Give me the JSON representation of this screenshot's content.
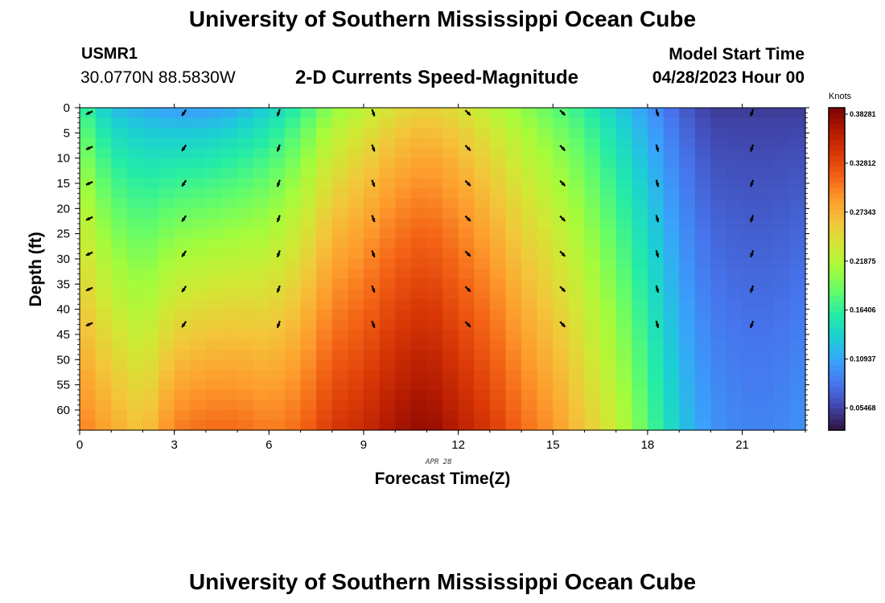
{
  "header": {
    "title": "University of Southern Mississippi Ocean Cube",
    "station_id": "USMR1",
    "coords": "30.0770N  88.5830W",
    "plot_title": "2-D Currents Speed-Magnitude",
    "model_start_label": "Model Start Time",
    "model_start_value": "04/28/2023 Hour 00"
  },
  "footer": {
    "title": "University of Southern Mississippi Ocean Cube"
  },
  "chart_data": {
    "type": "heatmap",
    "title": "2-D Currents Speed-Magnitude",
    "xlabel": "Forecast Time(Z)",
    "ylabel": "Depth (ft)",
    "x_annotation": "APR 28",
    "xlim": [
      0,
      23
    ],
    "ylim": [
      0,
      64
    ],
    "y_inverted": true,
    "x_ticks": [
      0,
      3,
      6,
      9,
      12,
      15,
      18,
      21
    ],
    "y_ticks": [
      0,
      5,
      10,
      15,
      20,
      25,
      30,
      35,
      40,
      45,
      50,
      55,
      60
    ],
    "colorbar": {
      "unit": "Knots",
      "ticks": [
        "0.38281",
        "0.32812",
        "0.27343",
        "0.21875",
        "0.16406",
        "0.10937",
        "0.05468"
      ],
      "colormap": [
        "#30123b",
        "#4145ab",
        "#4675ed",
        "#39a2fc",
        "#1bcfd4",
        "#24eca6",
        "#61fc6c",
        "#a4fc3b",
        "#d1e834",
        "#f3c63a",
        "#fe9b2d",
        "#f36315",
        "#d93806",
        "#b11901",
        "#7a0403"
      ],
      "range": [
        0.03,
        0.39
      ]
    },
    "speed_profile": {
      "description_hours": [
        0,
        1,
        2,
        3,
        4,
        5,
        6,
        7,
        8,
        9,
        10,
        11,
        12,
        13,
        14,
        15,
        16,
        17,
        18,
        19,
        20,
        21,
        22,
        23
      ],
      "surface_knots": [
        0.17,
        0.12,
        0.11,
        0.1,
        0.1,
        0.11,
        0.13,
        0.16,
        0.2,
        0.22,
        0.24,
        0.25,
        0.24,
        0.22,
        0.2,
        0.18,
        0.16,
        0.13,
        0.1,
        0.07,
        0.05,
        0.05,
        0.05,
        0.05
      ],
      "bottom_knots": [
        0.3,
        0.28,
        0.26,
        0.3,
        0.31,
        0.31,
        0.3,
        0.31,
        0.34,
        0.35,
        0.37,
        0.38,
        0.36,
        0.34,
        0.31,
        0.29,
        0.26,
        0.23,
        0.18,
        0.13,
        0.1,
        0.09,
        0.09,
        0.1
      ]
    },
    "vector_columns": [
      {
        "hour": 0,
        "angle_deg": 245
      },
      {
        "hour": 3,
        "angle_deg": 215
      },
      {
        "hour": 6,
        "angle_deg": 200
      },
      {
        "hour": 9,
        "angle_deg": 160
      },
      {
        "hour": 12,
        "angle_deg": 135
      },
      {
        "hour": 15,
        "angle_deg": 135
      },
      {
        "hour": 18,
        "angle_deg": 165
      },
      {
        "hour": 21,
        "angle_deg": 200
      }
    ],
    "vector_depths": [
      1,
      8,
      15,
      22,
      29,
      36,
      43
    ]
  }
}
